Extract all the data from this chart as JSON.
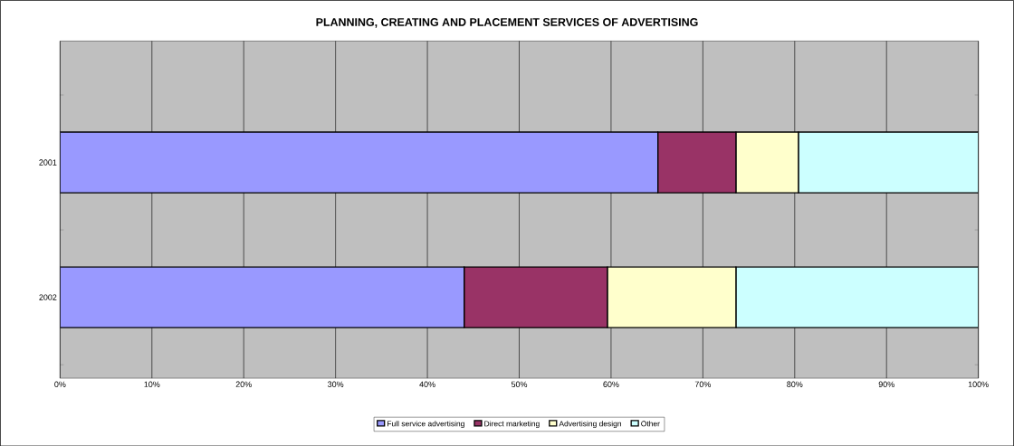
{
  "chart_data": {
    "type": "bar",
    "title": "PLANNING, CREATING AND PLACEMENT SERVICES OF ADVERTISING",
    "orientation": "horizontal",
    "stacked": true,
    "categories": [
      "2001",
      "2002"
    ],
    "series": [
      {
        "name": "Full service advertising",
        "color": "#9999ff",
        "values": [
          65.1,
          44.0
        ]
      },
      {
        "name": "Direct marketing",
        "color": "#993366",
        "values": [
          8.5,
          15.6
        ]
      },
      {
        "name": "Advertising design",
        "color": "#ffffcc",
        "values": [
          6.8,
          14.0
        ]
      },
      {
        "name": "Other",
        "color": "#ccffff",
        "values": [
          19.6,
          26.4
        ]
      }
    ],
    "xlim": [
      0,
      100
    ],
    "xticks": [
      {
        "value": 0,
        "label": "0%"
      },
      {
        "value": 10,
        "label": "10%"
      },
      {
        "value": 20,
        "label": "20%"
      },
      {
        "value": 30,
        "label": "30%"
      },
      {
        "value": 40,
        "label": "40%"
      },
      {
        "value": 50,
        "label": "50%"
      },
      {
        "value": 60,
        "label": "60%"
      },
      {
        "value": 70,
        "label": "70%"
      },
      {
        "value": 80,
        "label": "80%"
      },
      {
        "value": 90,
        "label": "90%"
      },
      {
        "value": 100,
        "label": "100%"
      }
    ],
    "grid": "x",
    "legend": "bottom"
  }
}
